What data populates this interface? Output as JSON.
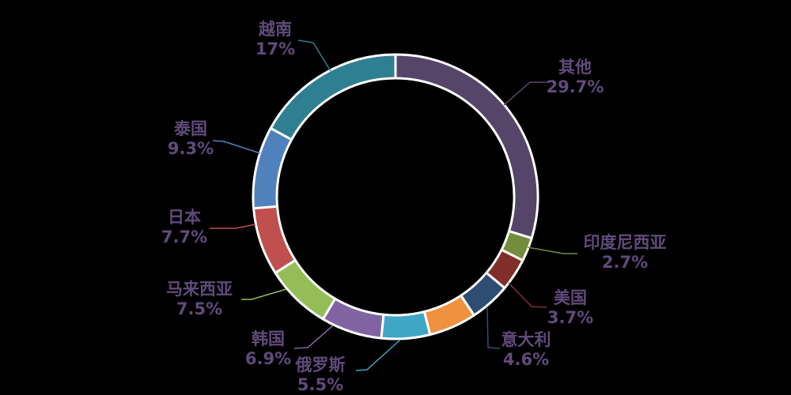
{
  "background_color": "#000000",
  "label_text_color": "#604A7B",
  "chart_data": {
    "type": "pie",
    "subtype": "donut",
    "title": "",
    "legend_position": "none",
    "start_angle_deg": 0,
    "direction": "clockwise",
    "segment_border_color": "#FFFFFF",
    "leader_lines": "colored per segment",
    "segments": [
      {
        "label": "其他",
        "value": 29.7,
        "pct_label": "29.7%",
        "color": "#554569"
      },
      {
        "label": "印度尼西亚",
        "value": 2.7,
        "pct_label": "2.7%",
        "color": "#728D3B"
      },
      {
        "label": "美国",
        "value": 3.7,
        "pct_label": "3.7%",
        "color": "#812E2B"
      },
      {
        "label": "意大利",
        "value": 4.6,
        "pct_label": "4.6%",
        "color": "#2E4D72"
      },
      {
        "label": "",
        "value": 5.4,
        "pct_label": "",
        "color": "#F0913F"
      },
      {
        "label": "俄罗斯",
        "value": 5.5,
        "pct_label": "5.5%",
        "color": "#3FA7C5"
      },
      {
        "label": "韩国",
        "value": 6.9,
        "pct_label": "6.9%",
        "color": "#8064A2"
      },
      {
        "label": "马来西亚",
        "value": 7.5,
        "pct_label": "7.5%",
        "color": "#94BD58"
      },
      {
        "label": "日本",
        "value": 7.7,
        "pct_label": "7.7%",
        "color": "#C0504D"
      },
      {
        "label": "泰国",
        "value": 9.3,
        "pct_label": "9.3%",
        "color": "#4F81BD"
      },
      {
        "label": "越南",
        "value": 17,
        "pct_label": "17%",
        "color": "#2F7F93"
      }
    ]
  }
}
